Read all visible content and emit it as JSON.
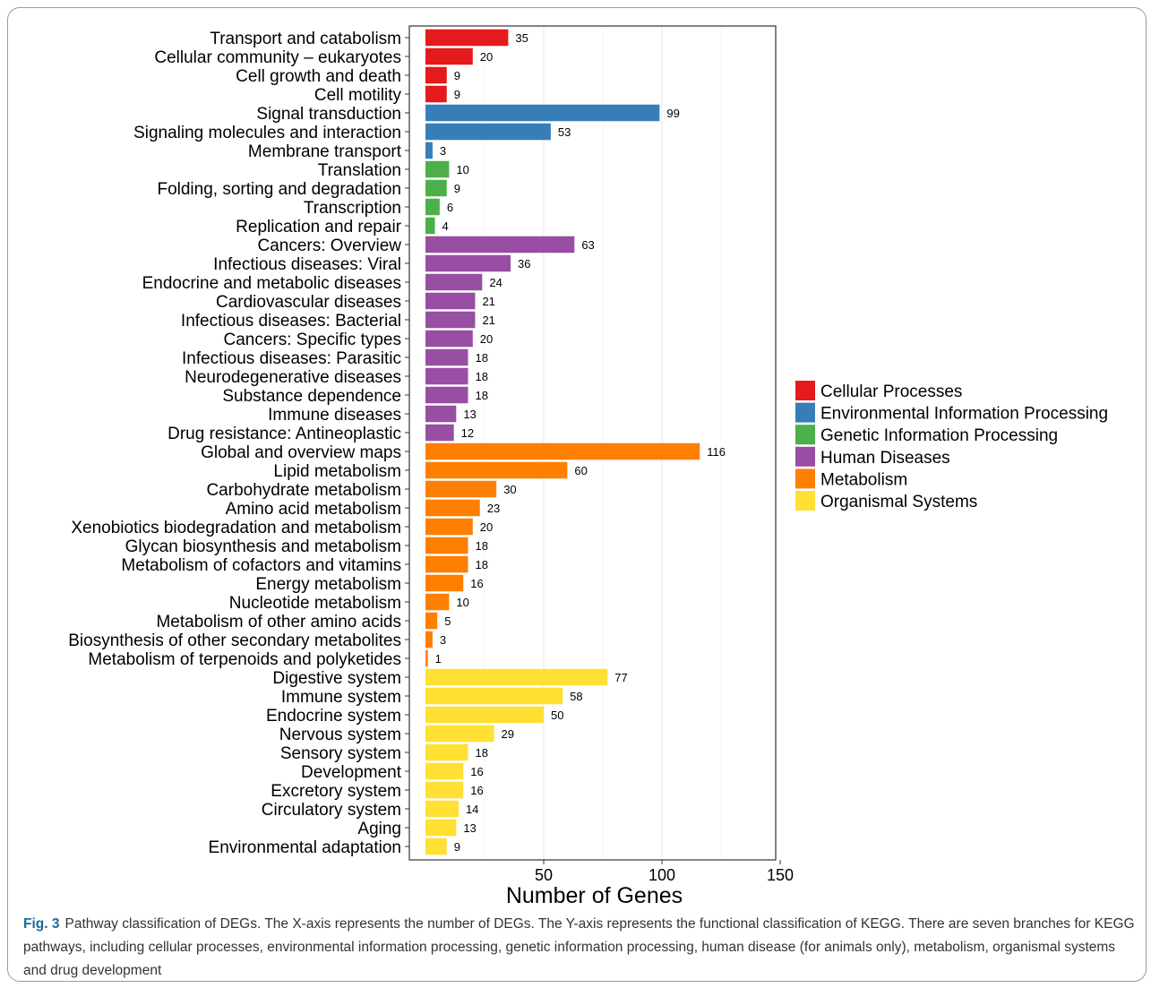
{
  "chart_data": {
    "type": "bar",
    "orientation": "horizontal",
    "xlabel": "Number of Genes",
    "ylabel": "",
    "xticks": [
      50,
      100,
      150
    ],
    "xlim": [
      0,
      170
    ],
    "grid": true,
    "legend_position": "right",
    "groups": [
      {
        "name": "Cellular Processes",
        "color": "#e41a1c"
      },
      {
        "name": "Environmental Information Processing",
        "color": "#377eb8"
      },
      {
        "name": "Genetic Information Processing",
        "color": "#4daf4a"
      },
      {
        "name": "Human Diseases",
        "color": "#984ea3"
      },
      {
        "name": "Metabolism",
        "color": "#ff7f00"
      },
      {
        "name": "Organismal Systems",
        "color": "#ffe033"
      }
    ],
    "bars": [
      {
        "label": "Transport and catabolism",
        "value": 35,
        "group": 0
      },
      {
        "label": "Cellular community – eukaryotes",
        "value": 20,
        "group": 0
      },
      {
        "label": "Cell growth and death",
        "value": 9,
        "group": 0
      },
      {
        "label": "Cell motility",
        "value": 9,
        "group": 0
      },
      {
        "label": "Signal transduction",
        "value": 99,
        "group": 1
      },
      {
        "label": "Signaling molecules and interaction",
        "value": 53,
        "group": 1
      },
      {
        "label": "Membrane transport",
        "value": 3,
        "group": 1
      },
      {
        "label": "Translation",
        "value": 10,
        "group": 2
      },
      {
        "label": "Folding, sorting and degradation",
        "value": 9,
        "group": 2
      },
      {
        "label": "Transcription",
        "value": 6,
        "group": 2
      },
      {
        "label": "Replication and repair",
        "value": 4,
        "group": 2
      },
      {
        "label": "Cancers: Overview",
        "value": 63,
        "group": 3
      },
      {
        "label": "Infectious diseases: Viral",
        "value": 36,
        "group": 3
      },
      {
        "label": "Endocrine and metabolic diseases",
        "value": 24,
        "group": 3
      },
      {
        "label": "Cardiovascular diseases",
        "value": 21,
        "group": 3
      },
      {
        "label": "Infectious diseases: Bacterial",
        "value": 21,
        "group": 3
      },
      {
        "label": "Cancers: Specific types",
        "value": 20,
        "group": 3
      },
      {
        "label": "Infectious diseases: Parasitic",
        "value": 18,
        "group": 3
      },
      {
        "label": "Neurodegenerative diseases",
        "value": 18,
        "group": 3
      },
      {
        "label": "Substance dependence",
        "value": 18,
        "group": 3
      },
      {
        "label": "Immune diseases",
        "value": 13,
        "group": 3
      },
      {
        "label": "Drug resistance: Antineoplastic",
        "value": 12,
        "group": 3
      },
      {
        "label": "Global and overview maps",
        "value": 116,
        "group": 4
      },
      {
        "label": "Lipid metabolism",
        "value": 60,
        "group": 4
      },
      {
        "label": "Carbohydrate metabolism",
        "value": 30,
        "group": 4
      },
      {
        "label": "Amino acid metabolism",
        "value": 23,
        "group": 4
      },
      {
        "label": "Xenobiotics biodegradation and metabolism",
        "value": 20,
        "group": 4
      },
      {
        "label": "Glycan biosynthesis and metabolism",
        "value": 18,
        "group": 4
      },
      {
        "label": "Metabolism of cofactors and vitamins",
        "value": 18,
        "group": 4
      },
      {
        "label": "Energy metabolism",
        "value": 16,
        "group": 4
      },
      {
        "label": "Nucleotide metabolism",
        "value": 10,
        "group": 4
      },
      {
        "label": "Metabolism of other amino acids",
        "value": 5,
        "group": 4
      },
      {
        "label": "Biosynthesis of other secondary metabolites",
        "value": 3,
        "group": 4
      },
      {
        "label": "Metabolism of terpenoids and polyketides",
        "value": 1,
        "group": 4
      },
      {
        "label": "Digestive system",
        "value": 77,
        "group": 5
      },
      {
        "label": "Immune system",
        "value": 58,
        "group": 5
      },
      {
        "label": "Endocrine system",
        "value": 50,
        "group": 5
      },
      {
        "label": "Nervous system",
        "value": 29,
        "group": 5
      },
      {
        "label": "Sensory system",
        "value": 18,
        "group": 5
      },
      {
        "label": "Development",
        "value": 16,
        "group": 5
      },
      {
        "label": "Excretory system",
        "value": 16,
        "group": 5
      },
      {
        "label": "Circulatory system",
        "value": 14,
        "group": 5
      },
      {
        "label": "Aging",
        "value": 13,
        "group": 5
      },
      {
        "label": "Environmental adaptation",
        "value": 9,
        "group": 5
      }
    ]
  },
  "caption": {
    "label": "Fig. 3",
    "text": "Pathway classification of DEGs. The X-axis represents the number of DEGs. The Y-axis represents the functional classification of KEGG. There are seven branches for KEGG pathways, including cellular processes, environmental information processing, genetic information processing, human disease (for animals only), metabolism, organismal systems and drug development"
  }
}
